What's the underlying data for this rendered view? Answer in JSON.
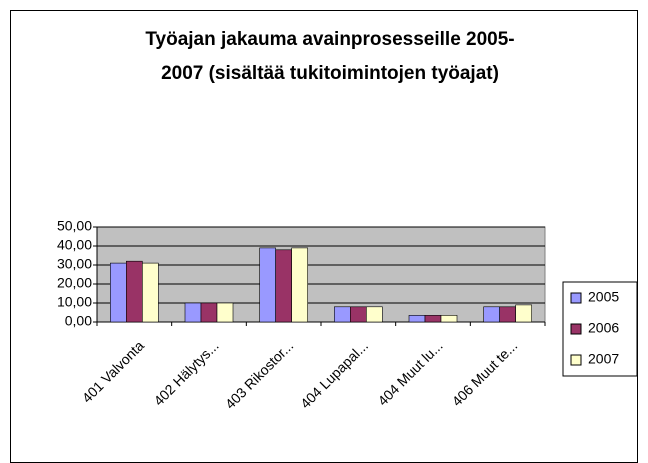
{
  "chart_data": {
    "type": "bar",
    "title": [
      "Työajan jakauma avainprosesseille 2005-",
      "2007 (sisältää tukitoimintojen työajat)"
    ],
    "categories": [
      "401 Valvonta",
      "402 Hälytys...",
      "403 Rikostor...",
      "404 Lupapal...",
      "404 Muut lu...",
      "406 Muut te..."
    ],
    "series": [
      {
        "name": "2005",
        "color": "#9999ff",
        "values": [
          31,
          10,
          39,
          8,
          3.5,
          8
        ]
      },
      {
        "name": "2006",
        "color": "#993366",
        "values": [
          32,
          10,
          38,
          8,
          3.5,
          8
        ]
      },
      {
        "name": "2007",
        "color": "#ffffcc",
        "values": [
          31,
          10,
          39,
          8,
          3.5,
          9
        ]
      }
    ],
    "ylim": [
      0,
      50
    ],
    "yticks": [
      {
        "value": 0,
        "label": "0,00"
      },
      {
        "value": 10,
        "label": "10,00"
      },
      {
        "value": 20,
        "label": "20,00"
      },
      {
        "value": 30,
        "label": "30,00"
      },
      {
        "value": 40,
        "label": "40,00"
      },
      {
        "value": 50,
        "label": "50,00"
      }
    ],
    "grid": true,
    "legend": "right"
  }
}
